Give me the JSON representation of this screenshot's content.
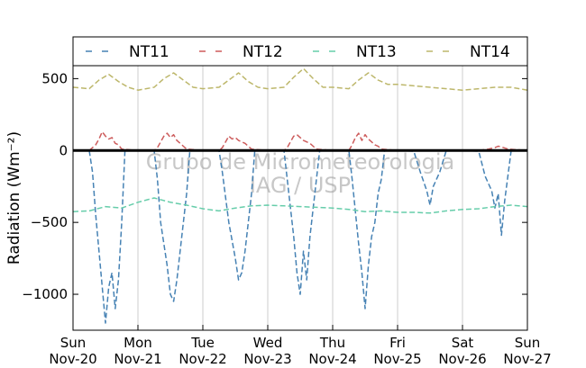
{
  "chart_data": {
    "type": "line",
    "ylabel": "Radiation (Wm⁻²)",
    "xlabel": "",
    "ylim": [
      -1250,
      590
    ],
    "yticks": [
      500,
      0,
      -500,
      -1000
    ],
    "ytick_labels": [
      "500",
      "0",
      "−500",
      "−1000"
    ],
    "xlim": [
      0,
      7
    ],
    "xticks": [
      {
        "value": 0,
        "day": "Sun",
        "date": "Nov-20"
      },
      {
        "value": 1,
        "day": "Mon",
        "date": "Nov-21"
      },
      {
        "value": 2,
        "day": "Tue",
        "date": "Nov-22"
      },
      {
        "value": 3,
        "day": "Wed",
        "date": "Nov-23"
      },
      {
        "value": 4,
        "day": "Thu",
        "date": "Nov-24"
      },
      {
        "value": 5,
        "day": "Fri",
        "date": "Nov-25"
      },
      {
        "value": 6,
        "day": "Sat",
        "date": "Nov-26"
      },
      {
        "value": 7,
        "day": "Sun",
        "date": "Nov-27"
      }
    ],
    "grid": "vertical",
    "legend_position": "top",
    "watermark": [
      "Grupo de Micrometeorologia",
      "IAG / USP"
    ],
    "series": [
      {
        "name": "NT11",
        "color": "#4682b4",
        "x": [
          0,
          0.25,
          0.3,
          0.35,
          0.4,
          0.45,
          0.5,
          0.55,
          0.6,
          0.65,
          0.7,
          0.75,
          0.8,
          1.0,
          1.25,
          1.3,
          1.35,
          1.45,
          1.5,
          1.55,
          1.6,
          1.65,
          1.7,
          1.75,
          1.8,
          2.0,
          2.25,
          2.3,
          2.4,
          2.5,
          2.55,
          2.6,
          2.65,
          2.7,
          2.75,
          2.8,
          3.0,
          3.25,
          3.3,
          3.4,
          3.45,
          3.5,
          3.55,
          3.6,
          3.65,
          3.7,
          3.75,
          3.8,
          4.0,
          4.25,
          4.3,
          4.4,
          4.45,
          4.5,
          4.55,
          4.6,
          4.65,
          4.7,
          4.75,
          4.8,
          5.0,
          5.25,
          5.35,
          5.45,
          5.5,
          5.55,
          5.6,
          5.65,
          5.75,
          6.0,
          6.25,
          6.35,
          6.45,
          6.5,
          6.55,
          6.6,
          6.65,
          6.75,
          7.0
        ],
        "values": [
          0,
          0,
          -150,
          -450,
          -700,
          -950,
          -1200,
          -950,
          -850,
          -1100,
          -900,
          -500,
          0,
          0,
          0,
          -200,
          -500,
          -800,
          -1000,
          -1050,
          -900,
          -700,
          -500,
          -300,
          0,
          0,
          0,
          -150,
          -500,
          -750,
          -900,
          -850,
          -700,
          -500,
          -300,
          0,
          0,
          0,
          -200,
          -600,
          -850,
          -1000,
          -700,
          -900,
          -600,
          -400,
          -200,
          0,
          0,
          0,
          -200,
          -650,
          -850,
          -1100,
          -800,
          -600,
          -500,
          -300,
          -200,
          0,
          0,
          -5,
          -150,
          -280,
          -380,
          -250,
          -200,
          -150,
          0,
          0,
          -5,
          -180,
          -280,
          -400,
          -300,
          -590,
          -350,
          0,
          0
        ]
      },
      {
        "name": "NT12",
        "color": "#cd5c5c",
        "x": [
          0,
          0.25,
          0.35,
          0.4,
          0.45,
          0.5,
          0.55,
          0.6,
          0.65,
          0.7,
          0.75,
          1.0,
          1.25,
          1.3,
          1.35,
          1.4,
          1.45,
          1.5,
          1.55,
          1.6,
          1.65,
          1.7,
          1.75,
          2.0,
          2.25,
          2.3,
          2.35,
          2.4,
          2.45,
          2.5,
          2.55,
          2.6,
          2.65,
          2.7,
          2.75,
          3.0,
          3.25,
          3.3,
          3.35,
          3.4,
          3.45,
          3.5,
          3.55,
          3.6,
          3.65,
          3.7,
          3.75,
          4.0,
          4.25,
          4.3,
          4.35,
          4.4,
          4.45,
          4.5,
          4.55,
          4.6,
          4.65,
          4.7,
          4.75,
          5.0,
          5.5,
          5.75,
          6.0,
          6.25,
          6.4,
          6.5,
          6.55,
          6.6,
          6.7,
          7.0
        ],
        "values": [
          0,
          0,
          40,
          80,
          130,
          100,
          80,
          90,
          50,
          40,
          10,
          0,
          0,
          20,
          60,
          100,
          120,
          90,
          110,
          70,
          50,
          30,
          10,
          0,
          0,
          20,
          60,
          100,
          80,
          90,
          70,
          60,
          50,
          30,
          10,
          0,
          0,
          20,
          60,
          100,
          110,
          90,
          70,
          60,
          50,
          30,
          10,
          0,
          0,
          40,
          90,
          120,
          70,
          110,
          80,
          60,
          40,
          30,
          10,
          0,
          0,
          0,
          0,
          0,
          10,
          20,
          30,
          25,
          10,
          0
        ]
      },
      {
        "name": "NT13",
        "color": "#66cdaa",
        "x": [
          0,
          0.25,
          0.5,
          0.75,
          1.0,
          1.25,
          1.5,
          1.75,
          2.0,
          2.25,
          2.5,
          2.75,
          3.0,
          3.25,
          3.5,
          3.75,
          4.0,
          4.25,
          4.5,
          4.75,
          5.0,
          5.25,
          5.5,
          5.75,
          6.0,
          6.25,
          6.5,
          6.75,
          7.0
        ],
        "values": [
          -425,
          -420,
          -390,
          -400,
          -360,
          -330,
          -360,
          -380,
          -405,
          -420,
          -400,
          -385,
          -380,
          -385,
          -390,
          -395,
          -400,
          -410,
          -425,
          -420,
          -430,
          -430,
          -435,
          -420,
          -410,
          -405,
          -390,
          -380,
          -390
        ]
      },
      {
        "name": "NT14",
        "color": "#bdb76b",
        "x": [
          0,
          0.25,
          0.4,
          0.55,
          0.7,
          0.85,
          1.0,
          1.25,
          1.4,
          1.55,
          1.7,
          1.85,
          2.0,
          2.25,
          2.4,
          2.55,
          2.7,
          2.85,
          3.0,
          3.25,
          3.4,
          3.55,
          3.7,
          3.85,
          4.0,
          4.25,
          4.4,
          4.55,
          4.7,
          4.85,
          5.0,
          5.25,
          5.5,
          5.75,
          6.0,
          6.25,
          6.5,
          6.75,
          7.0
        ],
        "values": [
          440,
          430,
          490,
          530,
          480,
          440,
          420,
          440,
          500,
          540,
          490,
          440,
          430,
          440,
          490,
          540,
          480,
          440,
          430,
          440,
          510,
          570,
          500,
          440,
          440,
          430,
          490,
          540,
          490,
          460,
          460,
          450,
          440,
          430,
          420,
          430,
          440,
          440,
          420
        ]
      }
    ]
  }
}
